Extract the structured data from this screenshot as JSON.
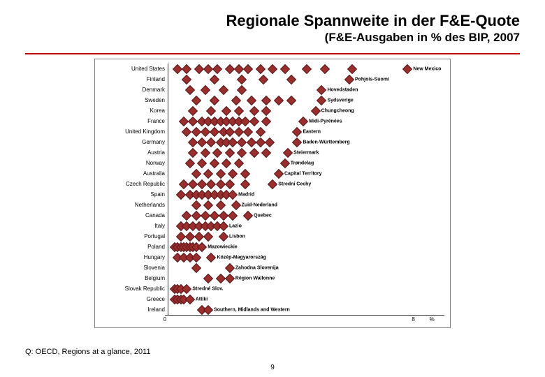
{
  "title": "Regionale Spannweite in der F&E-Quote",
  "subtitle": "(F&E-Ausgaben in % des BIP, 2007",
  "rule_color": "#c00000",
  "source": "Q: OECD, Regions at a glance, 2011",
  "page_number": "9",
  "chart": {
    "type": "dotplot",
    "xmin": 0,
    "xmax": 9,
    "xtick_labels": [
      "0",
      "",
      "",
      "",
      "",
      "",
      "",
      "",
      "8"
    ],
    "xtick_positions": [
      0,
      1,
      2,
      3,
      4,
      5,
      6,
      7,
      8
    ],
    "xaxis_unit_label": "%",
    "xaxis_unit_label_pos": 8.6,
    "marker_color": "#9b2d2d",
    "marker_border": "#5a1a1a",
    "countries": [
      {
        "name": "United States",
        "max_label": "New Mexico",
        "points": [
          0.3,
          0.6,
          1.0,
          1.3,
          1.6,
          2.0,
          2.3,
          2.6,
          3.0,
          3.4,
          3.8,
          4.5,
          5.1,
          6.0,
          7.8
        ]
      },
      {
        "name": "Finland",
        "max_label": "Pohjois-Suomi",
        "points": [
          0.6,
          1.5,
          2.4,
          3.1,
          4.0,
          5.9
        ]
      },
      {
        "name": "Denmark",
        "max_label": "Hovedstaden",
        "points": [
          0.7,
          1.2,
          1.8,
          2.4,
          5.0
        ]
      },
      {
        "name": "Sweden",
        "max_label": "Sydsverige",
        "points": [
          0.9,
          1.5,
          2.2,
          2.7,
          3.2,
          3.6,
          4.0,
          5.0
        ]
      },
      {
        "name": "Korea",
        "max_label": "Chungcheong",
        "points": [
          0.8,
          1.4,
          1.9,
          2.3,
          2.8,
          3.2,
          4.8
        ]
      },
      {
        "name": "France",
        "max_label": "Midi-Pyrénées",
        "points": [
          0.5,
          0.8,
          1.1,
          1.3,
          1.5,
          1.7,
          1.9,
          2.1,
          2.3,
          2.5,
          2.8,
          3.2,
          4.4
        ]
      },
      {
        "name": "United Kingdom",
        "max_label": "Eastern",
        "points": [
          0.6,
          0.9,
          1.2,
          1.5,
          1.8,
          2.0,
          2.3,
          2.6,
          3.0,
          4.2
        ]
      },
      {
        "name": "Germany",
        "max_label": "Baden-Württemberg",
        "points": [
          0.8,
          1.1,
          1.4,
          1.7,
          1.9,
          2.1,
          2.4,
          2.7,
          3.0,
          3.3,
          4.2
        ]
      },
      {
        "name": "Austria",
        "max_label": "Steiermark",
        "points": [
          0.8,
          1.2,
          1.6,
          2.0,
          2.4,
          2.8,
          3.2,
          3.9
        ]
      },
      {
        "name": "Norway",
        "max_label": "Trøndelag",
        "points": [
          0.7,
          1.1,
          1.5,
          1.9,
          2.3,
          3.8
        ]
      },
      {
        "name": "Australia",
        "max_label": "Capital Territory",
        "points": [
          0.9,
          1.3,
          1.7,
          2.1,
          2.5,
          3.6
        ]
      },
      {
        "name": "Czech Republic",
        "max_label": "Strední Cechy",
        "points": [
          0.5,
          0.8,
          1.1,
          1.4,
          1.7,
          2.0,
          2.5,
          3.4
        ]
      },
      {
        "name": "Spain",
        "max_label": "Madrid",
        "points": [
          0.4,
          0.7,
          0.9,
          1.1,
          1.3,
          1.5,
          1.7,
          1.9,
          2.1
        ]
      },
      {
        "name": "Netherlands",
        "max_label": "Zuid-Nederland",
        "points": [
          0.9,
          1.3,
          1.7,
          2.2
        ]
      },
      {
        "name": "Canada",
        "max_label": "Quebec",
        "points": [
          0.6,
          0.9,
          1.2,
          1.5,
          1.8,
          2.1,
          2.6
        ]
      },
      {
        "name": "Italy",
        "max_label": "Lazio",
        "points": [
          0.4,
          0.6,
          0.8,
          1.0,
          1.2,
          1.4,
          1.6,
          1.8
        ]
      },
      {
        "name": "Portugal",
        "max_label": "Lisbon",
        "points": [
          0.4,
          0.7,
          1.0,
          1.3,
          1.8
        ]
      },
      {
        "name": "Poland",
        "max_label": "Mazowieckie",
        "points": [
          0.2,
          0.3,
          0.4,
          0.5,
          0.6,
          0.7,
          0.8,
          0.9,
          1.1
        ]
      },
      {
        "name": "Hungary",
        "max_label": "Közép-Magyarország",
        "points": [
          0.3,
          0.5,
          0.7,
          0.9,
          1.4
        ]
      },
      {
        "name": "Slovenia",
        "max_label": "Zahodna Slovenija",
        "points": [
          0.9,
          2.0
        ]
      },
      {
        "name": "Belgium",
        "max_label": "Région Wallonne",
        "points": [
          1.3,
          1.7,
          2.0
        ]
      },
      {
        "name": "Slovak Republic",
        "max_label": "Stredné Slov.",
        "points": [
          0.2,
          0.3,
          0.4,
          0.6
        ]
      },
      {
        "name": "Greece",
        "max_label": "Attiki",
        "points": [
          0.2,
          0.3,
          0.4,
          0.5,
          0.7
        ]
      },
      {
        "name": "Ireland",
        "max_label": "Southern, Midlands and Western",
        "points": [
          1.1,
          1.3
        ]
      }
    ]
  }
}
